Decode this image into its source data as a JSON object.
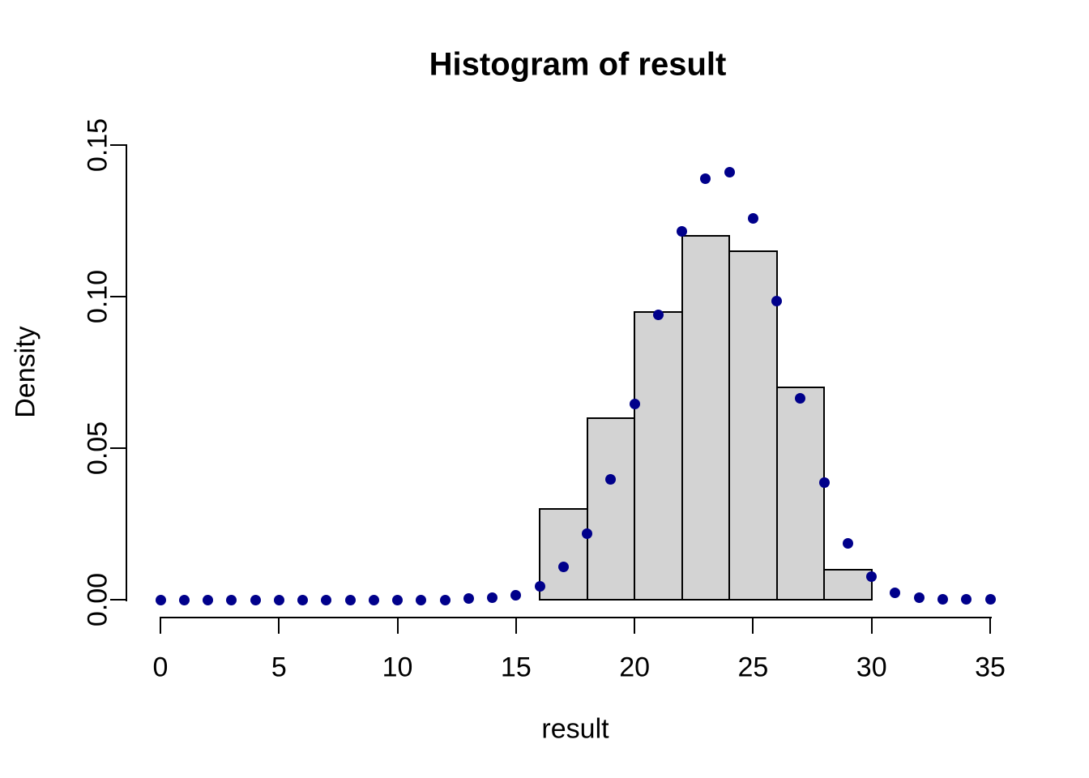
{
  "chart_data": {
    "type": "histogram",
    "title": "Histogram of result",
    "xlabel": "result",
    "ylabel": "Density",
    "xlim": [
      0,
      35
    ],
    "ylim": [
      0,
      0.15
    ],
    "grid": false,
    "legend": false,
    "x_ticks": {
      "values": [
        0,
        5,
        10,
        15,
        20,
        25,
        30,
        35
      ],
      "labels": [
        "0",
        "5",
        "10",
        "15",
        "20",
        "25",
        "30",
        "35"
      ]
    },
    "y_ticks": {
      "values": [
        0,
        0.05,
        0.1,
        0.15
      ],
      "labels": [
        "0.00",
        "0.05",
        "0.10",
        "0.15"
      ]
    },
    "histogram": {
      "bin_edges": [
        16,
        18,
        20,
        22,
        24,
        26,
        28,
        30
      ],
      "densities": [
        0.03,
        0.06,
        0.095,
        0.12,
        0.115,
        0.07,
        0.01
      ],
      "fill_color": "#D3D3D3",
      "border_color": "#000000"
    },
    "points": {
      "marker": "filled-circle",
      "color": "#00008B",
      "x": [
        0,
        1,
        2,
        3,
        4,
        5,
        6,
        7,
        8,
        9,
        10,
        11,
        12,
        13,
        14,
        15,
        16,
        17,
        18,
        19,
        20,
        21,
        22,
        23,
        24,
        25,
        26,
        27,
        28,
        29,
        30,
        31,
        32,
        33,
        34,
        35
      ],
      "y": [
        0,
        0,
        0,
        0,
        0,
        0,
        0,
        0,
        0,
        0,
        0,
        0,
        0,
        0.0003,
        0.0008,
        0.0016,
        0.0043,
        0.0107,
        0.0217,
        0.0396,
        0.0645,
        0.094,
        0.1215,
        0.139,
        0.141,
        0.1259,
        0.0984,
        0.0664,
        0.0387,
        0.0185,
        0.0076,
        0.0022,
        0.0008,
        0.0002,
        0.0001,
        0.0001
      ]
    }
  }
}
